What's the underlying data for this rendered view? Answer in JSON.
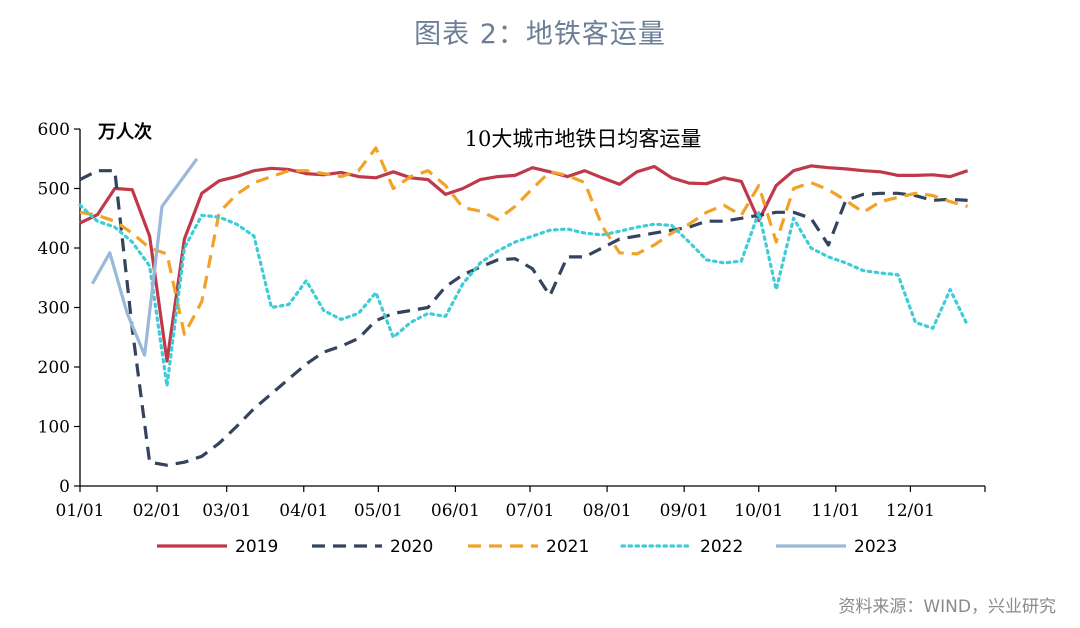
{
  "figure": {
    "title": "图表 2：地铁客运量",
    "source": "资料来源：WIND，兴业研究"
  },
  "chart_data": {
    "type": "line",
    "title": "10大城市地铁日均客运量",
    "unit_label": "万人次",
    "x_tick_labels": [
      "01/01",
      "02/01",
      "03/01",
      "04/01",
      "05/01",
      "06/01",
      "07/01",
      "08/01",
      "09/01",
      "10/01",
      "11/01",
      "12/01"
    ],
    "ylim": [
      0,
      600
    ],
    "y_ticks": [
      0,
      100,
      200,
      300,
      400,
      500,
      600
    ],
    "grid": false,
    "legend_position": "bottom",
    "series": [
      {
        "name": "2019",
        "color": "#c0394b",
        "style": "solid",
        "x": [
          1,
          8,
          15,
          22,
          29,
          36,
          43,
          50,
          57,
          64,
          71,
          78,
          85,
          92,
          99,
          106,
          113,
          120,
          127,
          134,
          141,
          148,
          155,
          162,
          169,
          176,
          183,
          190,
          197,
          204,
          211,
          218,
          225,
          232,
          239,
          246,
          253,
          260,
          267,
          274,
          281,
          288,
          295,
          302,
          309,
          316,
          323,
          330,
          337,
          344,
          351,
          358
        ],
        "y": [
          442,
          456,
          500,
          498,
          420,
          210,
          415,
          492,
          513,
          520,
          530,
          534,
          532,
          525,
          523,
          527,
          520,
          518,
          528,
          518,
          515,
          490,
          500,
          515,
          520,
          522,
          535,
          528,
          520,
          530,
          518,
          507,
          528,
          537,
          518,
          509,
          508,
          518,
          512,
          446,
          505,
          530,
          538,
          535,
          533,
          530,
          528,
          522,
          522,
          523,
          520,
          530
        ]
      },
      {
        "name": "2020",
        "color": "#34435e",
        "style": "dashed",
        "x": [
          1,
          8,
          15,
          22,
          29,
          36,
          43,
          50,
          57,
          64,
          71,
          78,
          85,
          92,
          99,
          106,
          113,
          120,
          127,
          134,
          141,
          148,
          155,
          162,
          169,
          176,
          183,
          190,
          197,
          204,
          211,
          218,
          225,
          232,
          239,
          246,
          253,
          260,
          267,
          274,
          281,
          288,
          295,
          302,
          309,
          316,
          323,
          330,
          337,
          344,
          351,
          358
        ],
        "y": [
          515,
          530,
          530,
          265,
          40,
          35,
          40,
          50,
          72,
          100,
          130,
          155,
          180,
          205,
          225,
          235,
          248,
          278,
          290,
          295,
          300,
          335,
          355,
          368,
          380,
          382,
          365,
          320,
          385,
          385,
          400,
          415,
          420,
          425,
          430,
          435,
          445,
          445,
          450,
          455,
          460,
          460,
          450,
          405,
          480,
          490,
          492,
          492,
          488,
          480,
          482,
          480
        ]
      },
      {
        "name": "2021",
        "color": "#f2a227",
        "style": "dashed",
        "x": [
          1,
          8,
          15,
          22,
          29,
          36,
          43,
          50,
          57,
          64,
          71,
          78,
          85,
          92,
          99,
          106,
          113,
          120,
          127,
          134,
          141,
          148,
          155,
          162,
          169,
          176,
          183,
          190,
          197,
          204,
          211,
          218,
          225,
          232,
          239,
          246,
          253,
          260,
          267,
          274,
          281,
          288,
          295,
          302,
          309,
          316,
          323,
          330,
          337,
          344,
          351,
          358
        ],
        "y": [
          460,
          455,
          445,
          425,
          400,
          390,
          255,
          310,
          460,
          490,
          510,
          520,
          530,
          530,
          525,
          520,
          530,
          568,
          500,
          520,
          530,
          505,
          468,
          462,
          448,
          470,
          500,
          528,
          522,
          510,
          437,
          392,
          390,
          405,
          425,
          440,
          460,
          472,
          455,
          505,
          410,
          500,
          510,
          498,
          480,
          460,
          478,
          485,
          492,
          488,
          478,
          470
        ]
      },
      {
        "name": "2022",
        "color": "#3ecdd6",
        "style": "dotted",
        "x": [
          1,
          8,
          15,
          22,
          29,
          36,
          43,
          50,
          57,
          64,
          71,
          78,
          85,
          92,
          99,
          106,
          113,
          120,
          127,
          134,
          141,
          148,
          155,
          162,
          169,
          176,
          183,
          190,
          197,
          204,
          211,
          218,
          225,
          232,
          239,
          246,
          253,
          260,
          267,
          274,
          281,
          288,
          295,
          302,
          309,
          316,
          323,
          330,
          337,
          344,
          351,
          358
        ],
        "y": [
          472,
          445,
          435,
          410,
          370,
          168,
          400,
          455,
          452,
          440,
          420,
          300,
          305,
          345,
          295,
          280,
          290,
          325,
          250,
          275,
          290,
          285,
          340,
          375,
          395,
          410,
          420,
          430,
          432,
          425,
          422,
          428,
          435,
          440,
          438,
          410,
          380,
          375,
          378,
          460,
          330,
          450,
          400,
          385,
          375,
          362,
          358,
          355,
          275,
          265,
          330,
          270
        ]
      },
      {
        "name": "2023",
        "color": "#9ab8d8",
        "style": "solid",
        "x": [
          6,
          13,
          20,
          27,
          34,
          41,
          48
        ],
        "y": [
          340,
          392,
          290,
          220,
          470,
          510,
          550
        ]
      }
    ]
  }
}
